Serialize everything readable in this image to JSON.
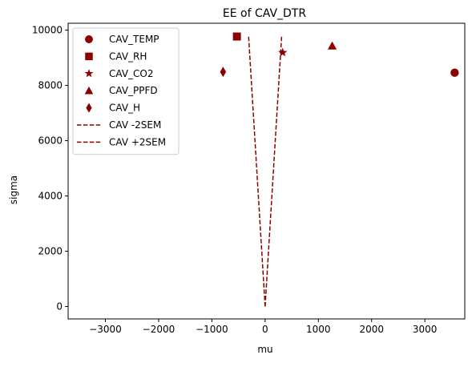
{
  "chart_data": {
    "type": "scatter",
    "title": "EE of CAV_DTR",
    "xlabel": "mu",
    "ylabel": "sigma",
    "xlim": [
      -3700,
      3750
    ],
    "ylim": [
      -450,
      10250
    ],
    "xticks": [
      -3000,
      -2000,
      -1000,
      0,
      1000,
      2000,
      3000
    ],
    "xtick_labels": [
      "−3000",
      "−2000",
      "−1000",
      "0",
      "1000",
      "2000",
      "3000"
    ],
    "yticks": [
      0,
      2000,
      4000,
      6000,
      8000,
      10000
    ],
    "ytick_labels": [
      "0",
      "2000",
      "4000",
      "6000",
      "8000",
      "10000"
    ],
    "grid": false,
    "legend_position": "upper-left",
    "color": "#8b0000",
    "series": [
      {
        "name": "CAV_TEMP",
        "marker": "circle",
        "x": 3560,
        "y": 8460
      },
      {
        "name": "CAV_RH",
        "marker": "square",
        "x": -530,
        "y": 9770
      },
      {
        "name": "CAV_CO2",
        "marker": "star",
        "x": 330,
        "y": 9190
      },
      {
        "name": "CAV_PPFD",
        "marker": "triangle",
        "x": 1260,
        "y": 9430
      },
      {
        "name": "CAV_H",
        "marker": "thin-diamond",
        "x": -790,
        "y": 8490
      }
    ],
    "lines": [
      {
        "name": "CAV -2SEM",
        "style": "dashed",
        "points": [
          [
            0,
            0
          ],
          [
            -310,
            9770
          ]
        ]
      },
      {
        "name": "CAV +2SEM",
        "style": "dashed",
        "points": [
          [
            0,
            0
          ],
          [
            310,
            9770
          ]
        ]
      }
    ]
  }
}
